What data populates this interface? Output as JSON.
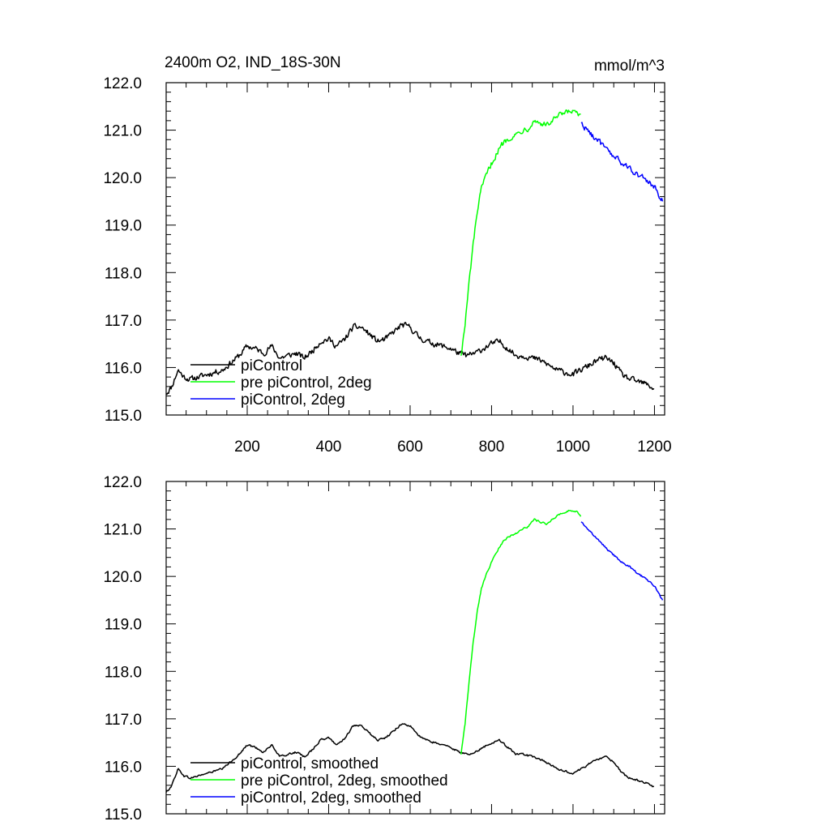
{
  "chart_data": [
    {
      "type": "line",
      "title": "2400m O2, IND_18S-30N",
      "units": "mmol/m^3",
      "xlim": [
        1,
        1225
      ],
      "ylim": [
        115.0,
        122.0
      ],
      "x_ticks": [
        200,
        400,
        600,
        800,
        1000,
        1200
      ],
      "x_tick_labels": [
        "200",
        "400",
        "600",
        "800",
        "1000",
        "1200"
      ],
      "y_ticks": [
        115,
        116,
        117,
        118,
        119,
        120,
        121,
        122
      ],
      "y_tick_labels": [
        "115.0",
        "116.0",
        "117.0",
        "118.0",
        "119.0",
        "120.0",
        "121.0",
        "122.0"
      ],
      "legend_position": "lower-left",
      "noise": 0.09,
      "series": [
        {
          "name": "piControl",
          "color": "#000000",
          "x": [
            1,
            15,
            30,
            45,
            60,
            80,
            100,
            120,
            140,
            160,
            180,
            200,
            220,
            240,
            260,
            280,
            300,
            320,
            340,
            360,
            380,
            400,
            420,
            440,
            460,
            480,
            500,
            520,
            540,
            560,
            580,
            600,
            620,
            640,
            660,
            680,
            700,
            720,
            740,
            760,
            780,
            800,
            820,
            840,
            860,
            880,
            900,
            920,
            940,
            960,
            980,
            1000,
            1020,
            1040,
            1060,
            1080,
            1100,
            1120,
            1140,
            1160,
            1180,
            1200
          ],
          "y": [
            115.45,
            115.6,
            115.95,
            115.8,
            115.75,
            115.8,
            115.85,
            115.9,
            115.95,
            116.1,
            116.25,
            116.45,
            116.4,
            116.3,
            116.45,
            116.2,
            116.25,
            116.3,
            116.2,
            116.35,
            116.55,
            116.6,
            116.45,
            116.6,
            116.85,
            116.85,
            116.7,
            116.55,
            116.6,
            116.75,
            116.9,
            116.85,
            116.65,
            116.55,
            116.5,
            116.45,
            116.4,
            116.3,
            116.25,
            116.3,
            116.4,
            116.5,
            116.55,
            116.4,
            116.25,
            116.25,
            116.2,
            116.15,
            116.05,
            115.95,
            115.9,
            115.85,
            115.95,
            116.05,
            116.15,
            116.2,
            116.1,
            115.85,
            115.75,
            115.7,
            115.65,
            115.55
          ]
        },
        {
          "name": "pre piControl, 2deg",
          "color": "#00ff00",
          "x": [
            725,
            735,
            745,
            755,
            765,
            775,
            785,
            800,
            815,
            830,
            845,
            860,
            875,
            890,
            905,
            920,
            935,
            950,
            965,
            980,
            995,
            1010,
            1020
          ],
          "y": [
            116.25,
            116.9,
            117.8,
            118.6,
            119.3,
            119.75,
            120.0,
            120.3,
            120.55,
            120.75,
            120.85,
            120.9,
            121.0,
            121.05,
            121.2,
            121.15,
            121.1,
            121.2,
            121.3,
            121.35,
            121.4,
            121.35,
            121.25
          ]
        },
        {
          "name": "piControl, 2deg",
          "color": "#0000ff",
          "x": [
            1020,
            1040,
            1060,
            1080,
            1100,
            1120,
            1140,
            1160,
            1180,
            1200,
            1210,
            1220
          ],
          "y": [
            121.15,
            120.95,
            120.8,
            120.6,
            120.45,
            120.3,
            120.2,
            120.05,
            119.95,
            119.8,
            119.65,
            119.5
          ]
        }
      ]
    },
    {
      "type": "line",
      "title": "",
      "xlim": [
        1,
        1225
      ],
      "ylim": [
        115.0,
        122.0
      ],
      "y_ticks": [
        115,
        116,
        117,
        118,
        119,
        120,
        121,
        122
      ],
      "y_tick_labels": [
        "115.0",
        "116.0",
        "117.0",
        "118.0",
        "119.0",
        "120.0",
        "121.0",
        "122.0"
      ],
      "legend_position": "lower-left",
      "noise": 0.03,
      "series": [
        {
          "name": "piControl, smoothed",
          "color": "#000000",
          "x": [
            1,
            15,
            30,
            45,
            60,
            80,
            100,
            120,
            140,
            160,
            180,
            200,
            220,
            240,
            260,
            280,
            300,
            320,
            340,
            360,
            380,
            400,
            420,
            440,
            460,
            480,
            500,
            520,
            540,
            560,
            580,
            600,
            620,
            640,
            660,
            680,
            700,
            720,
            740,
            760,
            780,
            800,
            820,
            840,
            860,
            880,
            900,
            920,
            940,
            960,
            980,
            1000,
            1020,
            1040,
            1060,
            1080,
            1100,
            1120,
            1140,
            1160,
            1180,
            1200
          ],
          "y": [
            115.45,
            115.6,
            115.95,
            115.8,
            115.75,
            115.8,
            115.85,
            115.9,
            115.95,
            116.1,
            116.25,
            116.45,
            116.4,
            116.3,
            116.45,
            116.2,
            116.25,
            116.3,
            116.2,
            116.35,
            116.55,
            116.6,
            116.45,
            116.6,
            116.85,
            116.85,
            116.7,
            116.55,
            116.6,
            116.75,
            116.9,
            116.85,
            116.65,
            116.55,
            116.5,
            116.45,
            116.4,
            116.3,
            116.25,
            116.3,
            116.4,
            116.5,
            116.55,
            116.4,
            116.25,
            116.25,
            116.2,
            116.15,
            116.05,
            115.95,
            115.9,
            115.85,
            115.95,
            116.05,
            116.15,
            116.2,
            116.1,
            115.85,
            115.75,
            115.7,
            115.65,
            115.55
          ]
        },
        {
          "name": "pre piControl, 2deg, smoothed",
          "color": "#00ff00",
          "x": [
            725,
            735,
            745,
            755,
            765,
            775,
            785,
            800,
            815,
            830,
            845,
            860,
            875,
            890,
            905,
            920,
            935,
            950,
            965,
            980,
            995,
            1010,
            1020
          ],
          "y": [
            116.25,
            116.9,
            117.8,
            118.6,
            119.3,
            119.75,
            120.0,
            120.3,
            120.55,
            120.75,
            120.85,
            120.9,
            121.0,
            121.05,
            121.2,
            121.15,
            121.1,
            121.2,
            121.3,
            121.35,
            121.4,
            121.35,
            121.25
          ]
        },
        {
          "name": "piControl, 2deg, smoothed",
          "color": "#0000ff",
          "x": [
            1020,
            1040,
            1060,
            1080,
            1100,
            1120,
            1140,
            1160,
            1180,
            1200,
            1210,
            1220
          ],
          "y": [
            121.15,
            120.95,
            120.8,
            120.6,
            120.45,
            120.3,
            120.2,
            120.05,
            119.95,
            119.8,
            119.65,
            119.5
          ]
        }
      ]
    }
  ]
}
